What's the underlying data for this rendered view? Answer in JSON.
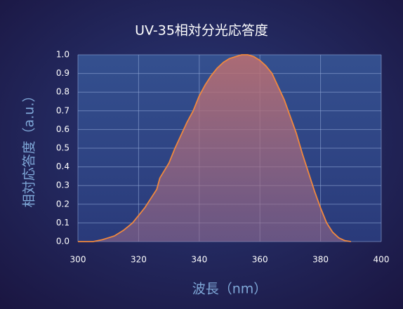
{
  "chart_data": {
    "type": "line",
    "title": "UV-35相対分光応答度",
    "x_label": "波長（nm）",
    "y_label": "相対応答度（a.u.）",
    "color": "#f0883e",
    "grid": true,
    "xlim": [
      300,
      400
    ],
    "xticks": [
      300,
      320,
      340,
      360,
      380,
      400
    ],
    "ylim": [
      0,
      1
    ],
    "yticks": [
      {
        "value": 0,
        "label": "0.0"
      },
      0.1,
      0.2,
      0.3,
      0.4,
      0.5,
      0.6,
      0.7,
      0.8,
      0.9,
      {
        "value": 1,
        "label": "1.0"
      }
    ],
    "x": [
      300,
      305,
      308,
      310,
      312,
      315,
      318,
      320,
      322,
      324,
      326,
      327,
      330,
      332,
      334,
      336,
      338,
      340,
      342,
      344,
      346,
      348,
      350,
      352,
      354,
      356,
      358,
      360,
      362,
      364,
      366,
      368,
      370,
      372,
      374,
      376,
      378,
      380,
      382,
      384,
      386,
      388,
      390
    ],
    "values": [
      0,
      0,
      0.01,
      0.02,
      0.03,
      0.06,
      0.1,
      0.14,
      0.18,
      0.23,
      0.28,
      0.34,
      0.42,
      0.5,
      0.57,
      0.64,
      0.7,
      0.78,
      0.84,
      0.89,
      0.93,
      0.96,
      0.98,
      0.99,
      1.0,
      1.0,
      0.99,
      0.97,
      0.94,
      0.9,
      0.83,
      0.76,
      0.67,
      0.58,
      0.47,
      0.37,
      0.27,
      0.18,
      0.1,
      0.05,
      0.02,
      0.005,
      0
    ]
  }
}
